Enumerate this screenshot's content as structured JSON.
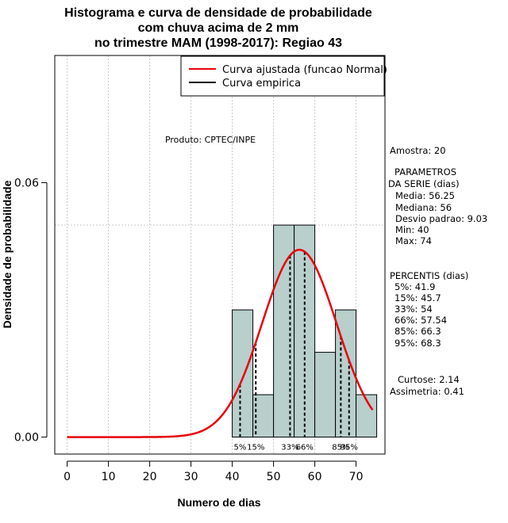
{
  "chart_data": {
    "type": "bar",
    "title_lines": [
      "Histograma e curva de densidade de probabilidade",
      "com chuva acima de 2 mm",
      "no trimestre MAM (1998-2017): Regiao 43"
    ],
    "xlabel": "Numero de dias",
    "ylabel": "Densidade de probabilidade",
    "xlim": [
      -3,
      77
    ],
    "ylim": [
      -0.004,
      0.09
    ],
    "x_ticks": [
      0,
      10,
      20,
      30,
      40,
      50,
      60,
      70
    ],
    "x_tick_labels": [
      "0",
      "10",
      "20",
      "30",
      "40",
      "50",
      "60",
      "70"
    ],
    "y_ticks": [
      0.0,
      0.06
    ],
    "y_tick_labels": [
      "0.00",
      "0.06"
    ],
    "grid": true,
    "hline": 0.05,
    "bins": [
      {
        "start": 40,
        "end": 45,
        "density": 0.03
      },
      {
        "start": 45,
        "end": 50,
        "density": 0.01
      },
      {
        "start": 50,
        "end": 55,
        "density": 0.05
      },
      {
        "start": 55,
        "end": 60,
        "density": 0.05
      },
      {
        "start": 60,
        "end": 65,
        "density": 0.02
      },
      {
        "start": 65,
        "end": 70,
        "density": 0.03
      },
      {
        "start": 70,
        "end": 75,
        "density": 0.01
      }
    ],
    "fit": {
      "name": "Curva ajustada (funcao Normal)",
      "mean": 56.25,
      "sd": 9.03,
      "x_range": [
        0,
        74
      ],
      "color": "#e8000b"
    },
    "empirical": {
      "name": "Curva empirica",
      "color": "#000000"
    },
    "legend_position": "top-right",
    "percentile_lines": [
      {
        "label": "5%",
        "value": 41.9
      },
      {
        "label": "15%",
        "value": 45.7
      },
      {
        "label": "33%",
        "value": 54
      },
      {
        "label": "66%",
        "value": 57.54
      },
      {
        "label": "85%",
        "value": 66.3
      },
      {
        "label": "95%",
        "value": 68.3
      }
    ],
    "bar_color": "#b8cfcc",
    "annotation": "Produto: CPTEC/INPE"
  },
  "stats_panel": {
    "amostra": "Amostra: 20",
    "param_title_1": "PARAMETROS",
    "param_title_2": "DA SERIE (dias)",
    "media": "Media: 56.25",
    "mediana": "Mediana: 56",
    "desvio": "Desvio padrao: 9.03",
    "min": "Min: 40",
    "max": "Max: 74",
    "pct_title": "PERCENTIS (dias)",
    "p5": "5%: 41.9",
    "p15": "15%: 45.7",
    "p33": "33%: 54",
    "p66": "66%: 57.54",
    "p85": "85%: 66.3",
    "p95": "95%: 68.3",
    "curtose": "Curtose: 2.14",
    "assimetria": "Assimetria: 0.41"
  }
}
